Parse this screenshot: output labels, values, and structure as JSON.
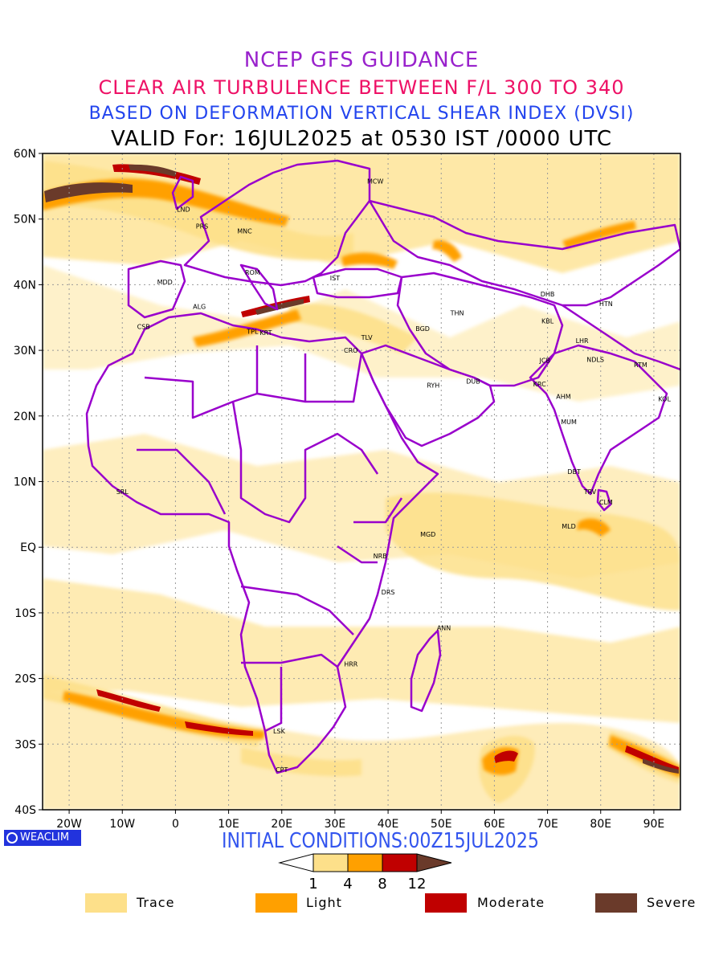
{
  "header": {
    "line1": "NCEP GFS GUIDANCE",
    "line2": "CLEAR AIR TURBULENCE BETWEEN F/L 300 TO 340",
    "line3": "BASED ON DEFORMATION VERTICAL SHEAR INDEX (DVSI)",
    "line4": "VALID For: 16JUL2025 at 0530 IST /0000 UTC",
    "colors": {
      "line1": "#9922cc",
      "line2": "#ee1166",
      "line3": "#2244ee",
      "line4": "#000000"
    }
  },
  "map": {
    "lat_labels": [
      "60N",
      "50N",
      "40N",
      "30N",
      "20N",
      "10N",
      "EQ",
      "10S",
      "20S",
      "30S",
      "40S"
    ],
    "lon_labels": [
      "20W",
      "10W",
      "0",
      "10E",
      "20E",
      "30E",
      "40E",
      "50E",
      "60E",
      "70E",
      "80E",
      "90E"
    ],
    "lat_range": [
      -40,
      60
    ],
    "lon_range": [
      -25,
      95
    ],
    "boundary_color": "#9900cc",
    "stations": [
      {
        "code": "MCW",
        "lat": 55.8,
        "lon": 37.6
      },
      {
        "code": "LND",
        "lat": 51.5,
        "lon": 1.5
      },
      {
        "code": "PRS",
        "lat": 48.9,
        "lon": 5.0
      },
      {
        "code": "MNC",
        "lat": 48.2,
        "lon": 13.0
      },
      {
        "code": "ROM",
        "lat": 41.9,
        "lon": 14.5
      },
      {
        "code": "MDD",
        "lat": 40.4,
        "lon": -2.0
      },
      {
        "code": "IST",
        "lat": 41.0,
        "lon": 30.0
      },
      {
        "code": "ALG",
        "lat": 36.7,
        "lon": 4.5
      },
      {
        "code": "CSB",
        "lat": 33.6,
        "lon": -6.0
      },
      {
        "code": "TPL",
        "lat": 32.9,
        "lon": 14.5
      },
      {
        "code": "KRT",
        "lat": 32.7,
        "lon": 17.0
      },
      {
        "code": "CRO",
        "lat": 30.0,
        "lon": 33.0
      },
      {
        "code": "TLV",
        "lat": 32.0,
        "lon": 36.0
      },
      {
        "code": "BGD",
        "lat": 33.3,
        "lon": 46.5
      },
      {
        "code": "THN",
        "lat": 35.7,
        "lon": 53.0
      },
      {
        "code": "RYH",
        "lat": 24.7,
        "lon": 48.5
      },
      {
        "code": "DUB",
        "lat": 25.3,
        "lon": 56.0
      },
      {
        "code": "DHB",
        "lat": 38.6,
        "lon": 70.0
      },
      {
        "code": "HTN",
        "lat": 37.1,
        "lon": 81.0
      },
      {
        "code": "KBL",
        "lat": 34.5,
        "lon": 70.0
      },
      {
        "code": "LHR",
        "lat": 31.5,
        "lon": 76.5
      },
      {
        "code": "JCB",
        "lat": 28.5,
        "lon": 69.5
      },
      {
        "code": "NDLS",
        "lat": 28.6,
        "lon": 79.0
      },
      {
        "code": "RTM",
        "lat": 27.8,
        "lon": 87.5
      },
      {
        "code": "KRC",
        "lat": 24.9,
        "lon": 68.5
      },
      {
        "code": "AHM",
        "lat": 23.0,
        "lon": 73.0
      },
      {
        "code": "KOL",
        "lat": 22.6,
        "lon": 92.0
      },
      {
        "code": "MUM",
        "lat": 19.1,
        "lon": 74.0
      },
      {
        "code": "DBT",
        "lat": 11.5,
        "lon": 75.0
      },
      {
        "code": "TRV",
        "lat": 8.5,
        "lon": 78.0
      },
      {
        "code": "CLM",
        "lat": 6.9,
        "lon": 81.0
      },
      {
        "code": "SRL",
        "lat": 8.5,
        "lon": -10.0
      },
      {
        "code": "MLD",
        "lat": 3.2,
        "lon": 74.0
      },
      {
        "code": "MGD",
        "lat": 2.0,
        "lon": 47.5
      },
      {
        "code": "NRB",
        "lat": -1.3,
        "lon": 38.5
      },
      {
        "code": "DRS",
        "lat": -6.8,
        "lon": 40.0
      },
      {
        "code": "ANN",
        "lat": -12.3,
        "lon": 50.5
      },
      {
        "code": "HRR",
        "lat": -17.8,
        "lon": 33.0
      },
      {
        "code": "LSK",
        "lat": -28.0,
        "lon": 19.5
      },
      {
        "code": "CPT",
        "lat": -33.9,
        "lon": 20.0
      }
    ]
  },
  "brand": {
    "logo_text": "WEACLIM",
    "logo_color": "#2233dd"
  },
  "initial_conditions": {
    "text": "INITIAL CONDITIONS:00Z15JUL2025",
    "color": "#3355ee"
  },
  "colorbar": {
    "ticks": [
      "1",
      "4",
      "8",
      "12"
    ],
    "colors": [
      "#ffffff",
      "#fde08a",
      "#ffa000",
      "#c00000",
      "#6a3a2a"
    ]
  },
  "legend": [
    {
      "label": "Trace",
      "color": "#fde08a"
    },
    {
      "label": "Light",
      "color": "#ffa000"
    },
    {
      "label": "Moderate",
      "color": "#c00000"
    },
    {
      "label": "Severe",
      "color": "#6a3a2a"
    }
  ]
}
